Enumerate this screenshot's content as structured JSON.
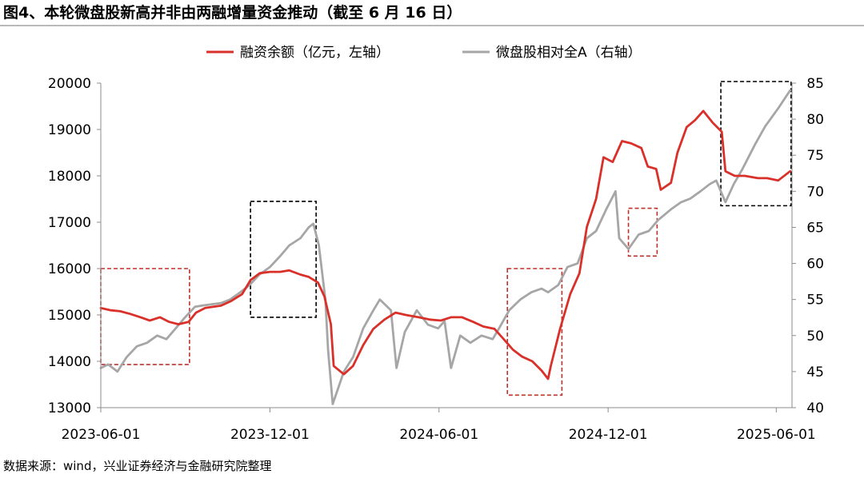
{
  "figure": {
    "title": "图4、本轮微盘股新高并非由两融增量资金推动（截至 6 月 16 日）",
    "source": "数据来源：wind，兴业证券经济与金融研究院整理"
  },
  "chart_data": {
    "type": "line",
    "title": "",
    "xlabel": "",
    "ylabel": "",
    "x_ticks": [
      "2023-06-01",
      "2023-12-01",
      "2024-06-01",
      "2024-12-01",
      "2025-06-01"
    ],
    "x_range": [
      "2023-06-01",
      "2025-06-18"
    ],
    "y_left": {
      "ylim": [
        13000,
        20000
      ],
      "ticks": [
        13000,
        14000,
        15000,
        16000,
        17000,
        18000,
        19000,
        20000
      ]
    },
    "y_right": {
      "ylim": [
        40,
        85
      ],
      "ticks": [
        40,
        45,
        50,
        55,
        60,
        65,
        70,
        75,
        80,
        85
      ]
    },
    "grid": false,
    "legend_position": "top-center",
    "series": [
      {
        "name": "融资余额（亿元，左轴）",
        "axis": "left",
        "color": "#d9302a",
        "points": [
          [
            "2023-06-01",
            15150
          ],
          [
            "2023-06-12",
            15100
          ],
          [
            "2023-06-22",
            15080
          ],
          [
            "2023-07-03",
            15020
          ],
          [
            "2023-07-14",
            14950
          ],
          [
            "2023-07-24",
            14880
          ],
          [
            "2023-08-04",
            14950
          ],
          [
            "2023-08-14",
            14850
          ],
          [
            "2023-08-24",
            14800
          ],
          [
            "2023-09-04",
            14850
          ],
          [
            "2023-09-12",
            15050
          ],
          [
            "2023-09-22",
            15150
          ],
          [
            "2023-10-09",
            15200
          ],
          [
            "2023-10-20",
            15300
          ],
          [
            "2023-11-01",
            15450
          ],
          [
            "2023-11-10",
            15750
          ],
          [
            "2023-11-20",
            15900
          ],
          [
            "2023-12-01",
            15930
          ],
          [
            "2023-12-12",
            15930
          ],
          [
            "2023-12-22",
            15960
          ],
          [
            "2024-01-03",
            15870
          ],
          [
            "2024-01-12",
            15820
          ],
          [
            "2024-01-22",
            15700
          ],
          [
            "2024-01-29",
            15400
          ],
          [
            "2024-02-05",
            14800
          ],
          [
            "2024-02-08",
            13900
          ],
          [
            "2024-02-19",
            13720
          ],
          [
            "2024-02-29",
            13900
          ],
          [
            "2024-03-11",
            14350
          ],
          [
            "2024-03-22",
            14700
          ],
          [
            "2024-04-03",
            14900
          ],
          [
            "2024-04-15",
            15050
          ],
          [
            "2024-04-26",
            15000
          ],
          [
            "2024-05-10",
            14950
          ],
          [
            "2024-05-22",
            14900
          ],
          [
            "2024-06-03",
            14880
          ],
          [
            "2024-06-14",
            14950
          ],
          [
            "2024-06-26",
            14950
          ],
          [
            "2024-07-08",
            14850
          ],
          [
            "2024-07-19",
            14750
          ],
          [
            "2024-07-31",
            14700
          ],
          [
            "2024-08-09",
            14500
          ],
          [
            "2024-08-20",
            14250
          ],
          [
            "2024-08-30",
            14100
          ],
          [
            "2024-09-10",
            14000
          ],
          [
            "2024-09-20",
            13800
          ],
          [
            "2024-09-27",
            13620
          ],
          [
            "2024-09-30",
            13900
          ],
          [
            "2024-10-10",
            14700
          ],
          [
            "2024-10-21",
            15450
          ],
          [
            "2024-10-31",
            15900
          ],
          [
            "2024-11-08",
            16900
          ],
          [
            "2024-11-18",
            17500
          ],
          [
            "2024-11-26",
            18400
          ],
          [
            "2024-12-06",
            18300
          ],
          [
            "2024-12-16",
            18750
          ],
          [
            "2024-12-26",
            18700
          ],
          [
            "2025-01-06",
            18600
          ],
          [
            "2025-01-13",
            18200
          ],
          [
            "2025-01-22",
            18150
          ],
          [
            "2025-01-27",
            17700
          ],
          [
            "2025-02-07",
            17850
          ],
          [
            "2025-02-14",
            18500
          ],
          [
            "2025-02-24",
            19050
          ],
          [
            "2025-03-05",
            19200
          ],
          [
            "2025-03-14",
            19400
          ],
          [
            "2025-03-24",
            19150
          ],
          [
            "2025-04-03",
            18950
          ],
          [
            "2025-04-07",
            18100
          ],
          [
            "2025-04-17",
            18000
          ],
          [
            "2025-04-28",
            18000
          ],
          [
            "2025-05-12",
            17950
          ],
          [
            "2025-05-22",
            17950
          ],
          [
            "2025-06-03",
            17900
          ],
          [
            "2025-06-16",
            18100
          ]
        ]
      },
      {
        "name": "微盘股相对全A（右轴）",
        "axis": "right",
        "color": "#a6a6a6",
        "points": [
          [
            "2023-06-01",
            45.5
          ],
          [
            "2023-06-09",
            46.0
          ],
          [
            "2023-06-19",
            45.0
          ],
          [
            "2023-06-29",
            47.0
          ],
          [
            "2023-07-10",
            48.5
          ],
          [
            "2023-07-21",
            49.0
          ],
          [
            "2023-08-01",
            50.0
          ],
          [
            "2023-08-11",
            49.5
          ],
          [
            "2023-08-21",
            51.0
          ],
          [
            "2023-08-31",
            52.5
          ],
          [
            "2023-09-11",
            54.0
          ],
          [
            "2023-09-21",
            54.2
          ],
          [
            "2023-10-09",
            54.5
          ],
          [
            "2023-10-19",
            55.0
          ],
          [
            "2023-10-30",
            56.0
          ],
          [
            "2023-11-09",
            57.0
          ],
          [
            "2023-11-20",
            58.5
          ],
          [
            "2023-12-01",
            59.5
          ],
          [
            "2023-12-12",
            61.0
          ],
          [
            "2023-12-22",
            62.5
          ],
          [
            "2024-01-03",
            63.5
          ],
          [
            "2024-01-12",
            65.0
          ],
          [
            "2024-01-17",
            65.5
          ],
          [
            "2024-01-23",
            62.5
          ],
          [
            "2024-01-30",
            55.0
          ],
          [
            "2024-02-02",
            48.0
          ],
          [
            "2024-02-07",
            40.5
          ],
          [
            "2024-02-19",
            45.0
          ],
          [
            "2024-02-29",
            47.0
          ],
          [
            "2024-03-11",
            51.0
          ],
          [
            "2024-03-22",
            53.5
          ],
          [
            "2024-03-29",
            55.0
          ],
          [
            "2024-04-10",
            53.5
          ],
          [
            "2024-04-16",
            45.5
          ],
          [
            "2024-04-25",
            50.5
          ],
          [
            "2024-05-08",
            53.5
          ],
          [
            "2024-05-20",
            51.5
          ],
          [
            "2024-05-31",
            51.0
          ],
          [
            "2024-06-07",
            52.0
          ],
          [
            "2024-06-14",
            45.5
          ],
          [
            "2024-06-24",
            50.0
          ],
          [
            "2024-07-05",
            49.0
          ],
          [
            "2024-07-17",
            50.0
          ],
          [
            "2024-07-29",
            49.5
          ],
          [
            "2024-08-05",
            51.0
          ],
          [
            "2024-08-16",
            53.5
          ],
          [
            "2024-08-28",
            55.0
          ],
          [
            "2024-09-09",
            56.0
          ],
          [
            "2024-09-20",
            56.5
          ],
          [
            "2024-09-27",
            56.0
          ],
          [
            "2024-10-08",
            57.0
          ],
          [
            "2024-10-18",
            59.5
          ],
          [
            "2024-10-29",
            60.0
          ],
          [
            "2024-11-08",
            63.5
          ],
          [
            "2024-11-18",
            64.5
          ],
          [
            "2024-11-29",
            67.5
          ],
          [
            "2024-12-09",
            70.0
          ],
          [
            "2024-12-13",
            63.5
          ],
          [
            "2024-12-23",
            62.0
          ],
          [
            "2025-01-03",
            64.0
          ],
          [
            "2025-01-14",
            64.5
          ],
          [
            "2025-01-24",
            66.0
          ],
          [
            "2025-02-07",
            67.5
          ],
          [
            "2025-02-18",
            68.5
          ],
          [
            "2025-02-28",
            69.0
          ],
          [
            "2025-03-11",
            70.0
          ],
          [
            "2025-03-21",
            71.0
          ],
          [
            "2025-03-28",
            71.5
          ],
          [
            "2025-04-07",
            68.5
          ],
          [
            "2025-04-16",
            71.0
          ],
          [
            "2025-04-25",
            73.0
          ],
          [
            "2025-05-09",
            76.5
          ],
          [
            "2025-05-20",
            79.0
          ],
          [
            "2025-06-03",
            81.5
          ],
          [
            "2025-06-16",
            84.0
          ]
        ]
      }
    ]
  }
}
